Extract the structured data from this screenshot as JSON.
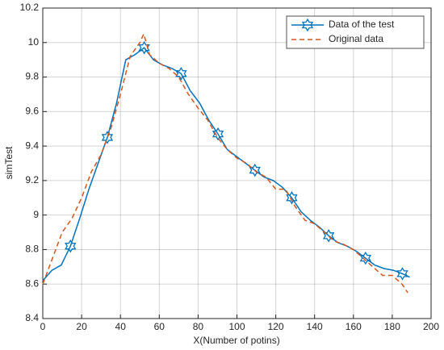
{
  "chart_data": {
    "type": "line",
    "xlabel": "X(Number of potins)",
    "ylabel": "simTest",
    "xlim": [
      0,
      200
    ],
    "xticks": [
      0,
      20,
      40,
      60,
      80,
      100,
      120,
      140,
      160,
      180,
      200
    ],
    "ylim": [
      8.4,
      10.2
    ],
    "yticks": [
      8.4,
      8.6,
      8.8,
      9,
      9.2,
      9.4,
      9.6,
      9.8,
      10,
      10.2
    ],
    "grid": true,
    "legend": "upper right",
    "series": [
      {
        "name": "Data of the test",
        "color": "#0072bd",
        "dash": "solid",
        "marker": "hexagram",
        "markevery": 4,
        "markstart": 3,
        "x": [
          0,
          4.75,
          9.5,
          14.25,
          19,
          23.75,
          28.5,
          33.25,
          38,
          42.75,
          47.5,
          52.25,
          57,
          61.75,
          66.5,
          71.25,
          76,
          80.75,
          85.5,
          90.25,
          95,
          99.75,
          104.5,
          109.25,
          114,
          118.75,
          123.5,
          128.25,
          133,
          137.75,
          142.5,
          147.25,
          152,
          156.75,
          161.5,
          166.25,
          171,
          175.75,
          180.5,
          185.25,
          189
        ],
        "values": [
          8.62,
          8.68,
          8.71,
          8.82,
          8.98,
          9.15,
          9.3,
          9.45,
          9.65,
          9.9,
          9.93,
          9.97,
          9.9,
          9.87,
          9.85,
          9.82,
          9.72,
          9.65,
          9.55,
          9.47,
          9.38,
          9.34,
          9.3,
          9.26,
          9.22,
          9.2,
          9.16,
          9.1,
          9.02,
          8.97,
          8.93,
          8.88,
          8.84,
          8.82,
          8.79,
          8.75,
          8.71,
          8.69,
          8.68,
          8.66,
          8.64
        ]
      },
      {
        "name": "Original data",
        "color": "#d95319",
        "dash": "dashed",
        "x": [
          0,
          5,
          10,
          15,
          20,
          25,
          30,
          35,
          40,
          45,
          50,
          52,
          55,
          60,
          65,
          70,
          75,
          80,
          85,
          90,
          95,
          100,
          105,
          110,
          115,
          120,
          125,
          130,
          135,
          140,
          145,
          150,
          155,
          160,
          165,
          170,
          175,
          180,
          185,
          188
        ],
        "values": [
          8.6,
          8.75,
          8.9,
          8.98,
          9.1,
          9.25,
          9.35,
          9.5,
          9.7,
          9.92,
          10.0,
          10.05,
          9.93,
          9.88,
          9.85,
          9.8,
          9.7,
          9.62,
          9.55,
          9.45,
          9.38,
          9.33,
          9.3,
          9.25,
          9.22,
          9.15,
          9.15,
          9.05,
          8.97,
          8.95,
          8.9,
          8.85,
          8.83,
          8.8,
          8.75,
          8.7,
          8.65,
          8.65,
          8.6,
          8.55
        ]
      }
    ]
  }
}
